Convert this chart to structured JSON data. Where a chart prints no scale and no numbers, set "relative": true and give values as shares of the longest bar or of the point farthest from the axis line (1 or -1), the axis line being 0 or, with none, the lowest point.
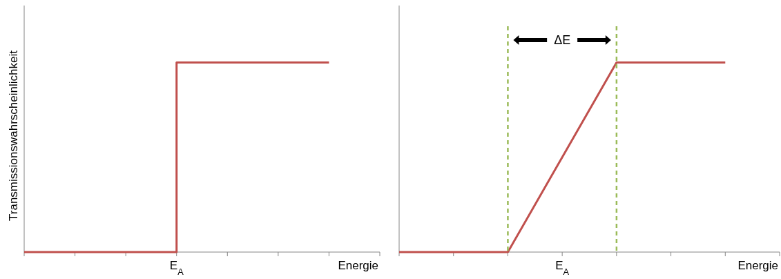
{
  "chart_data": [
    {
      "type": "step",
      "ylabel": "Transmissionswahrscheinlichkeit",
      "xlabel": "Energie",
      "relative": true,
      "categories": [
        null,
        null,
        null,
        null,
        null,
        null,
        null,
        null
      ],
      "series": [
        {
          "color": "#c0504d",
          "values": [
            0,
            0,
            0,
            1,
            1,
            1,
            1,
            null
          ]
        }
      ],
      "annotations": [
        "E$_{A}$"
      ]
    },
    {
      "type": "line",
      "xlabel": "Energie",
      "relative": true,
      "categories": [
        null,
        null,
        null,
        null,
        null,
        null,
        null,
        null
      ],
      "series": [
        {
          "color": "#c0504d",
          "values": [
            0,
            0,
            0,
            0.5,
            1,
            1,
            1,
            null
          ]
        }
      ],
      "annotations": [
        "ΔE",
        "E$_{A}$"
      ]
    }
  ]
}
